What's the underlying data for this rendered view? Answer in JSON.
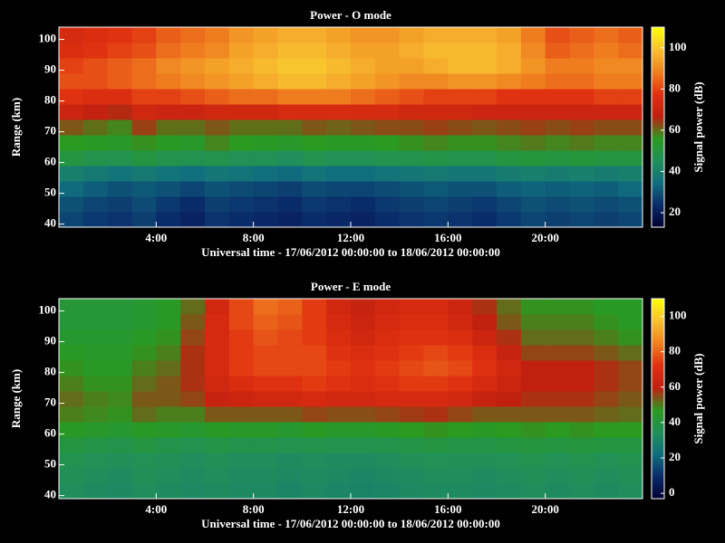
{
  "chart_data": [
    {
      "type": "heatmap",
      "title": "Power - O mode",
      "xlabel": "Universal time - 17/06/2012 00:00:00 to 18/06/2012 00:00:00",
      "ylabel": "Range (km)",
      "colorbar_label": "Signal power (dB)",
      "xlim": [
        0,
        24
      ],
      "ylim": [
        39,
        104
      ],
      "xticks": [
        {
          "value": 4,
          "label": "4:00"
        },
        {
          "value": 8,
          "label": "8:00"
        },
        {
          "value": 12,
          "label": "12:00"
        },
        {
          "value": 16,
          "label": "16:00"
        },
        {
          "value": 20,
          "label": "20:00"
        }
      ],
      "yticks": [
        40,
        50,
        60,
        70,
        80,
        90,
        100
      ],
      "clim": [
        13,
        110
      ],
      "cticks": [
        20,
        40,
        60,
        80,
        100
      ],
      "colormap": [
        "#000030",
        "#0a2a6a",
        "#106e7e",
        "#20905a",
        "#2a9a20",
        "#c02010",
        "#e03010",
        "#f08020",
        "#f8c030",
        "#ffff00"
      ],
      "x": [
        0.5,
        1.5,
        2.5,
        3.5,
        4.5,
        5.5,
        6.5,
        7.5,
        8.5,
        9.5,
        10.5,
        11.5,
        12.5,
        13.5,
        14.5,
        15.5,
        16.5,
        17.5,
        18.5,
        19.5,
        20.5,
        21.5,
        22.5,
        23.5
      ],
      "y": [
        41.5,
        46.5,
        51.5,
        56.5,
        61.5,
        66.5,
        71.5,
        76.5,
        81.5,
        86.5,
        91.5,
        96.5,
        101.5
      ],
      "z": [
        [
          28,
          26,
          25,
          27,
          24,
          22,
          25,
          24,
          23,
          22,
          24,
          23,
          22,
          24,
          25,
          26,
          25,
          24,
          26,
          28,
          27,
          28,
          27,
          28
        ],
        [
          30,
          28,
          27,
          29,
          26,
          24,
          27,
          26,
          25,
          24,
          26,
          25,
          24,
          26,
          27,
          28,
          27,
          26,
          28,
          30,
          29,
          30,
          29,
          30
        ],
        [
          34,
          32,
          30,
          31,
          30,
          28,
          30,
          29,
          28,
          27,
          29,
          28,
          28,
          29,
          30,
          31,
          30,
          30,
          32,
          33,
          32,
          33,
          32,
          34
        ],
        [
          40,
          38,
          36,
          38,
          36,
          35,
          37,
          36,
          35,
          34,
          36,
          35,
          35,
          36,
          37,
          38,
          37,
          37,
          39,
          40,
          39,
          40,
          39,
          40
        ],
        [
          50,
          48,
          47,
          50,
          48,
          47,
          48,
          46,
          46,
          45,
          47,
          46,
          46,
          47,
          48,
          49,
          48,
          48,
          50,
          51,
          50,
          51,
          50,
          50
        ],
        [
          56,
          55,
          54,
          57,
          55,
          54,
          58,
          56,
          55,
          54,
          56,
          55,
          55,
          56,
          57,
          58,
          57,
          57,
          58,
          59,
          58,
          59,
          58,
          58
        ],
        [
          62,
          60,
          58,
          64,
          60,
          60,
          62,
          60,
          60,
          60,
          62,
          61,
          62,
          63,
          63,
          64,
          63,
          62,
          63,
          64,
          63,
          64,
          63,
          63
        ],
        [
          70,
          68,
          66,
          72,
          70,
          70,
          72,
          72,
          72,
          74,
          74,
          74,
          74,
          74,
          72,
          72,
          72,
          70,
          70,
          70,
          70,
          70,
          70,
          70
        ],
        [
          78,
          76,
          76,
          80,
          80,
          82,
          84,
          86,
          86,
          88,
          88,
          88,
          86,
          84,
          82,
          80,
          80,
          80,
          78,
          78,
          78,
          78,
          80,
          80
        ],
        [
          82,
          82,
          84,
          86,
          88,
          90,
          92,
          94,
          96,
          98,
          98,
          96,
          94,
          92,
          90,
          90,
          92,
          92,
          90,
          88,
          86,
          86,
          88,
          88
        ],
        [
          80,
          82,
          84,
          86,
          90,
          92,
          94,
          96,
          98,
          100,
          100,
          98,
          96,
          94,
          94,
          96,
          98,
          98,
          96,
          92,
          88,
          88,
          90,
          90
        ],
        [
          76,
          78,
          80,
          82,
          86,
          88,
          90,
          94,
          96,
          98,
          98,
          96,
          94,
          94,
          96,
          98,
          98,
          98,
          96,
          90,
          84,
          86,
          88,
          86
        ],
        [
          74,
          76,
          78,
          80,
          84,
          86,
          88,
          92,
          94,
          96,
          96,
          94,
          92,
          92,
          94,
          96,
          96,
          96,
          94,
          88,
          82,
          84,
          86,
          84
        ]
      ]
    },
    {
      "type": "heatmap",
      "title": "Power - E mode",
      "xlabel": "Universal time - 17/06/2012 00:00:00 to 18/06/2012 00:00:00",
      "ylabel": "Range (km)",
      "colorbar_label": "Signal power (dB)",
      "xlim": [
        0,
        24
      ],
      "ylim": [
        39,
        104
      ],
      "xticks": [
        {
          "value": 4,
          "label": "4:00"
        },
        {
          "value": 8,
          "label": "8:00"
        },
        {
          "value": 12,
          "label": "12:00"
        },
        {
          "value": 16,
          "label": "16:00"
        },
        {
          "value": 20,
          "label": "20:00"
        }
      ],
      "yticks": [
        40,
        50,
        60,
        70,
        80,
        90,
        100
      ],
      "clim": [
        -3,
        110
      ],
      "cticks": [
        0,
        20,
        40,
        60,
        80,
        100
      ],
      "colormap": [
        "#000030",
        "#0a2a6a",
        "#106e7e",
        "#20905a",
        "#2a9a20",
        "#c02010",
        "#e03010",
        "#f08020",
        "#f8c030",
        "#ffff00"
      ],
      "x": [
        0.5,
        1.5,
        2.5,
        3.5,
        4.5,
        5.5,
        6.5,
        7.5,
        8.5,
        9.5,
        10.5,
        11.5,
        12.5,
        13.5,
        14.5,
        15.5,
        16.5,
        17.5,
        18.5,
        19.5,
        20.5,
        21.5,
        22.5,
        23.5
      ],
      "y": [
        41.5,
        46.5,
        51.5,
        56.5,
        61.5,
        66.5,
        71.5,
        76.5,
        81.5,
        86.5,
        91.5,
        96.5,
        101.5
      ],
      "z": [
        [
          34,
          33,
          32,
          34,
          33,
          32,
          33,
          32,
          32,
          31,
          32,
          31,
          30,
          31,
          32,
          33,
          33,
          32,
          33,
          34,
          33,
          34,
          33,
          34
        ],
        [
          35,
          34,
          33,
          35,
          34,
          33,
          34,
          33,
          33,
          32,
          33,
          32,
          31,
          32,
          33,
          34,
          34,
          33,
          34,
          35,
          34,
          35,
          34,
          35
        ],
        [
          37,
          36,
          35,
          36,
          35,
          34,
          35,
          34,
          34,
          33,
          34,
          33,
          33,
          34,
          35,
          36,
          35,
          35,
          36,
          37,
          36,
          37,
          36,
          37
        ],
        [
          40,
          39,
          38,
          40,
          38,
          37,
          39,
          38,
          38,
          37,
          38,
          37,
          37,
          38,
          39,
          40,
          39,
          39,
          40,
          41,
          40,
          41,
          40,
          40
        ],
        [
          46,
          45,
          44,
          46,
          45,
          44,
          46,
          45,
          45,
          44,
          46,
          45,
          45,
          46,
          47,
          48,
          47,
          46,
          47,
          48,
          47,
          48,
          47,
          47
        ],
        [
          50,
          49,
          48,
          52,
          50,
          50,
          54,
          54,
          54,
          54,
          56,
          55,
          55,
          56,
          57,
          58,
          56,
          54,
          54,
          54,
          54,
          54,
          53,
          52
        ],
        [
          52,
          50,
          49,
          54,
          54,
          56,
          62,
          64,
          66,
          66,
          68,
          66,
          66,
          68,
          68,
          68,
          66,
          62,
          60,
          58,
          58,
          58,
          56,
          54
        ],
        [
          50,
          48,
          48,
          52,
          54,
          58,
          66,
          70,
          72,
          72,
          74,
          72,
          70,
          72,
          74,
          74,
          72,
          68,
          64,
          60,
          60,
          60,
          58,
          56
        ],
        [
          48,
          46,
          46,
          50,
          52,
          58,
          68,
          74,
          76,
          76,
          76,
          74,
          72,
          74,
          76,
          78,
          76,
          72,
          66,
          60,
          60,
          60,
          58,
          56
        ],
        [
          46,
          45,
          45,
          48,
          50,
          58,
          68,
          74,
          76,
          76,
          76,
          72,
          70,
          72,
          74,
          76,
          74,
          70,
          62,
          56,
          56,
          56,
          54,
          52
        ],
        [
          44,
          44,
          44,
          46,
          48,
          56,
          68,
          74,
          78,
          76,
          74,
          70,
          66,
          70,
          72,
          72,
          70,
          64,
          58,
          52,
          52,
          52,
          50,
          48
        ],
        [
          42,
          42,
          42,
          44,
          46,
          54,
          68,
          76,
          80,
          78,
          74,
          68,
          64,
          68,
          70,
          70,
          66,
          60,
          54,
          50,
          50,
          50,
          48,
          46
        ],
        [
          42,
          42,
          42,
          44,
          46,
          52,
          66,
          76,
          82,
          80,
          74,
          66,
          62,
          66,
          68,
          68,
          64,
          58,
          52,
          48,
          48,
          48,
          46,
          46
        ]
      ]
    }
  ]
}
